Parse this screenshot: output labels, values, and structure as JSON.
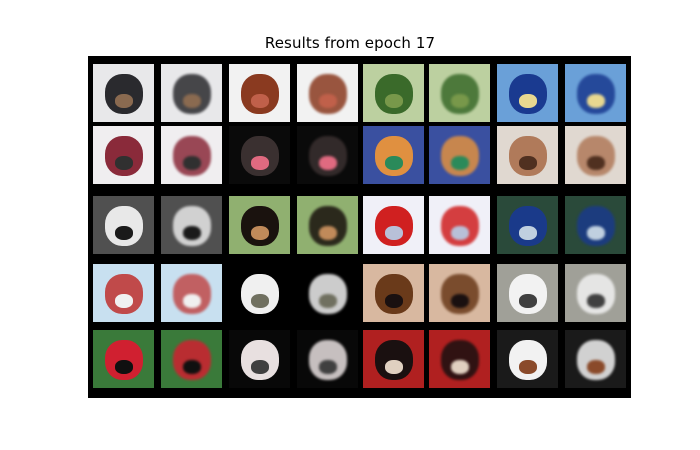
{
  "figure": {
    "title": "Results from epoch 17"
  },
  "grid": {
    "rows": 5,
    "pairs_per_row": 4,
    "description": "Each pair shows an input image (left) and its reconstruction (right)",
    "background_color": "#000000",
    "cells": [
      [
        {
          "name": "dog-husky",
          "bg": "#e8e8ea",
          "fg": "#2a2a2e",
          "accent": "#8a6a50"
        },
        {
          "name": "dog-brown-longhair",
          "bg": "#f2f2f2",
          "fg": "#8a3a20",
          "accent": "#c0604a"
        },
        {
          "name": "frog-green",
          "bg": "#bcd0a0",
          "fg": "#3a6a2a",
          "accent": "#78984a"
        },
        {
          "name": "truck-blue",
          "bg": "#6aa0d8",
          "fg": "#1a3a90",
          "accent": "#e8d890"
        }
      ],
      [
        {
          "name": "car-red-white",
          "bg": "#f0eef0",
          "fg": "#8a2a3a",
          "accent": "#303030"
        },
        {
          "name": "dog-black-face",
          "bg": "#0a0a0a",
          "fg": "#3a3030",
          "accent": "#e06a80"
        },
        {
          "name": "bird-colorful",
          "bg": "#3a50a0",
          "fg": "#e09040",
          "accent": "#2a8a5a"
        },
        {
          "name": "dog-fluffy-white",
          "bg": "#e0d8d0",
          "fg": "#b07a5a",
          "accent": "#503020"
        }
      ],
      [
        {
          "name": "truck-dark",
          "bg": "#505050",
          "fg": "#e8e8e8",
          "accent": "#1a1a1a"
        },
        {
          "name": "dog-rottweiler",
          "bg": "#90b070",
          "fg": "#1a120e",
          "accent": "#c08a5a"
        },
        {
          "name": "fire-truck-white",
          "bg": "#f0f0f8",
          "fg": "#d02020",
          "accent": "#b8c0d8"
        },
        {
          "name": "car-blue",
          "bg": "#2a4a3a",
          "fg": "#1a3a8a",
          "accent": "#c0d0e0"
        }
      ],
      [
        {
          "name": "person-figure",
          "bg": "#c8e0f0",
          "fg": "#c04a4a",
          "accent": "#f0f0f0"
        },
        {
          "name": "car-white-road",
          "bg": "#000000",
          "fg": "#f0f0f0",
          "accent": "#707060"
        },
        {
          "name": "dog-brown",
          "bg": "#d8b8a0",
          "fg": "#6a3a1a",
          "accent": "#1a1010"
        },
        {
          "name": "dog-white-fluffy",
          "bg": "#a0a098",
          "fg": "#f2f2f2",
          "accent": "#404040"
        }
      ],
      [
        {
          "name": "bird-green",
          "bg": "#3a7a3a",
          "fg": "#d02030",
          "accent": "#101010"
        },
        {
          "name": "cat-dark",
          "bg": "#080808",
          "fg": "#e8e0e0",
          "accent": "#404040"
        },
        {
          "name": "dog-tricolor",
          "bg": "#b02020",
          "fg": "#1a1010",
          "accent": "#e0d0c0"
        },
        {
          "name": "dog-spaniel",
          "bg": "#1a1a1a",
          "fg": "#f2f2f2",
          "accent": "#8a4a2a"
        }
      ]
    ]
  }
}
